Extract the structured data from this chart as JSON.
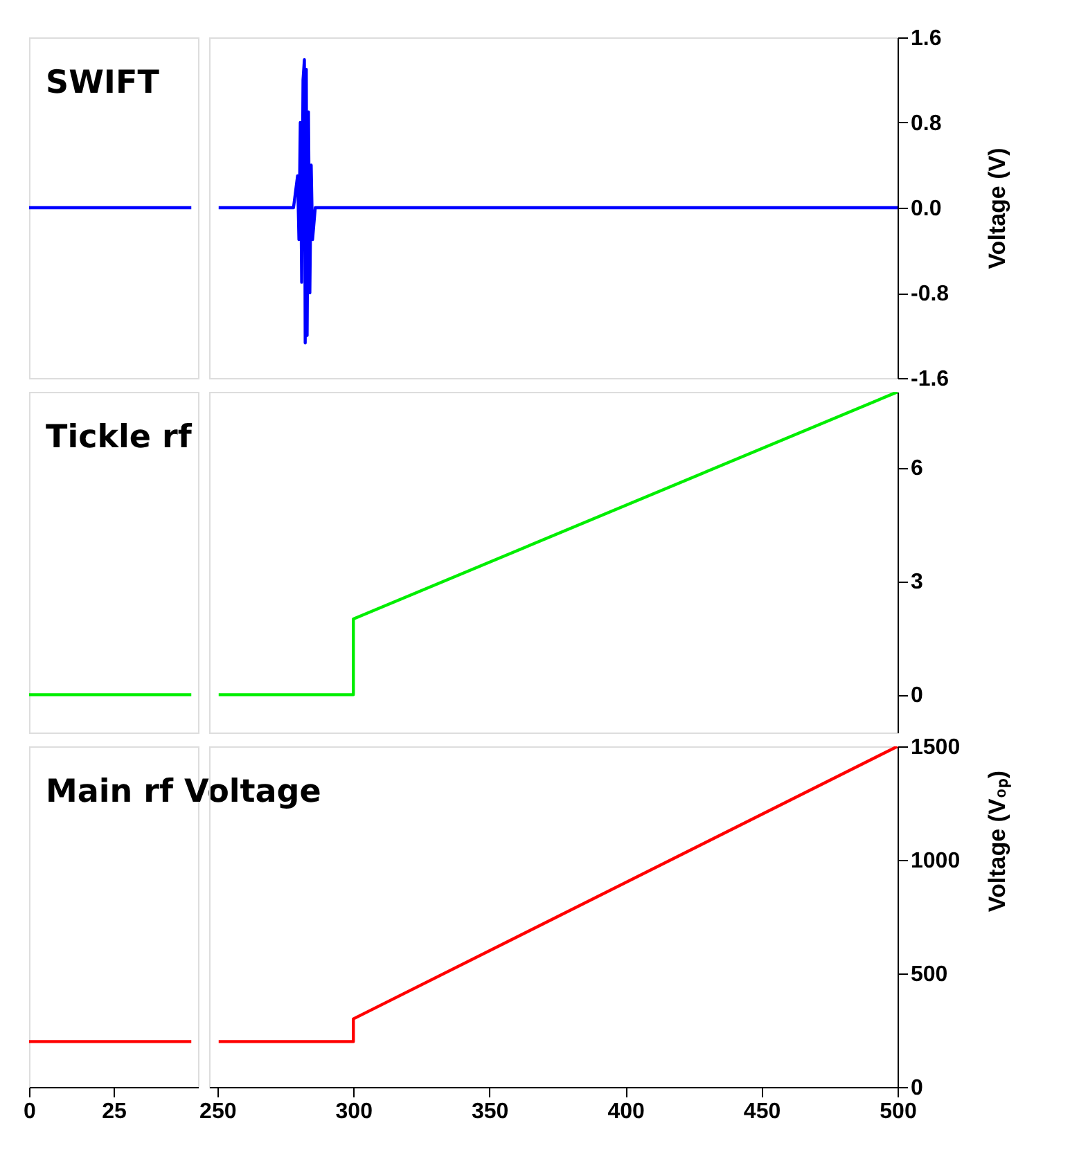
{
  "chart_data": [
    {
      "type": "line",
      "title": "SWIFT",
      "xlim": [
        0,
        50
      ],
      "ylim": [
        -1.6,
        1.6
      ],
      "tick_labels": false,
      "x": [
        0,
        48
      ],
      "series": [
        {
          "color": "#0000ff",
          "values": [
            0,
            0
          ]
        }
      ]
    },
    {
      "type": "line",
      "ylabel": "Voltage (V)",
      "xlim": [
        247,
        500
      ],
      "ylim": [
        -1.6,
        1.6
      ],
      "yticks": [
        1.6,
        0.8,
        {
          "value": 0,
          "label": "0.0"
        },
        -0.8,
        -1.6
      ],
      "tick_labels": "y",
      "x": [
        250.5,
        278,
        279.5,
        280,
        280.5,
        281,
        281.5,
        282,
        282.3,
        282.7,
        283,
        283.5,
        284,
        284.5,
        285,
        286,
        500
      ],
      "series": [
        {
          "color": "#0000ff",
          "values": [
            0,
            0,
            0.3,
            -0.3,
            0.8,
            -0.7,
            1.2,
            1.39,
            -1.27,
            1.3,
            -1.2,
            0.9,
            -0.8,
            0.4,
            -0.3,
            0,
            0
          ]
        }
      ]
    },
    {
      "type": "line",
      "title": "Tickle rf",
      "xlim": [
        0,
        50
      ],
      "ylim": [
        -1,
        8
      ],
      "tick_labels": false,
      "x": [
        0,
        48
      ],
      "series": [
        {
          "color": "#00ee00",
          "values": [
            0,
            0
          ]
        }
      ]
    },
    {
      "type": "line",
      "xlim": [
        247,
        500
      ],
      "ylim": [
        -1,
        8
      ],
      "yticks": [
        0,
        3,
        6
      ],
      "tick_labels": "y",
      "x": [
        250.5,
        300,
        300,
        500
      ],
      "series": [
        {
          "color": "#00ee00",
          "values": [
            0,
            0,
            2,
            8
          ]
        }
      ]
    },
    {
      "type": "line",
      "title": "Main rf Voltage",
      "xlim": [
        0,
        50
      ],
      "xticks": [
        0,
        25
      ],
      "ylim": [
        0,
        1500
      ],
      "tick_labels": "x",
      "x": [
        0,
        48
      ],
      "series": [
        {
          "color": "#ff0000",
          "values": [
            200,
            200
          ]
        }
      ]
    },
    {
      "type": "line",
      "ylabel": "Voltage (V₀ₚ)",
      "xlim": [
        247,
        500
      ],
      "xticks": [
        250,
        300,
        350,
        400,
        450,
        500
      ],
      "ylim": [
        0,
        1500
      ],
      "yticks": [
        0,
        500,
        1000,
        1500
      ],
      "x": [
        250.5,
        300,
        300,
        500
      ],
      "series": [
        {
          "color": "#ff0000",
          "values": [
            200,
            200,
            300,
            1500
          ]
        }
      ]
    }
  ]
}
